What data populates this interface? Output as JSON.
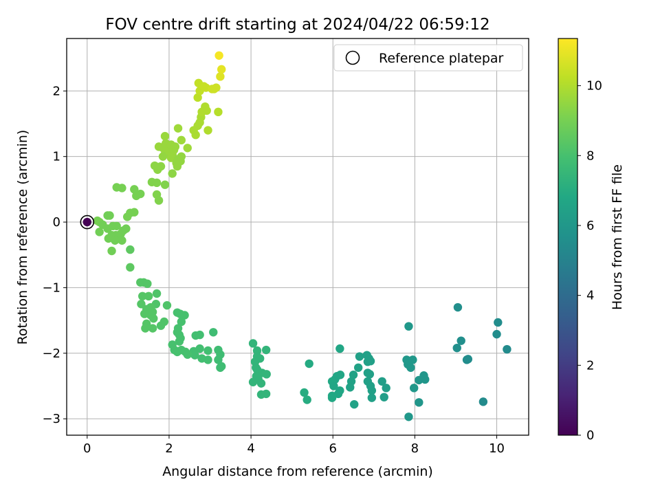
{
  "chart_data": {
    "type": "scatter",
    "title": "FOV centre drift starting at 2024/04/22 06:59:12",
    "xlabel": "Angular distance from reference (arcmin)",
    "ylabel": "Rotation from reference (arcmin)",
    "xlim": [
      -0.5,
      10.78
    ],
    "ylim": [
      -3.25,
      2.8
    ],
    "xticks": [
      0,
      2,
      4,
      6,
      8,
      10
    ],
    "yticks": [
      -3,
      -2,
      -1,
      0,
      1,
      2
    ],
    "xtick_labels": [
      "0",
      "2",
      "4",
      "6",
      "8",
      "10"
    ],
    "ytick_labels": [
      "−3",
      "−2",
      "−1",
      "0",
      "1",
      "2"
    ],
    "grid": true,
    "legend": {
      "placement": "top-right",
      "entries": [
        "Reference platepar"
      ]
    },
    "reference_point": {
      "x": 0,
      "y": 0,
      "label": "Reference platepar"
    },
    "colorbar": {
      "label": "Hours from first FF file",
      "range": [
        0,
        11.35
      ],
      "ticks": [
        0,
        2,
        4,
        6,
        8,
        10
      ],
      "tick_labels": [
        "0",
        "2",
        "4",
        "6",
        "8",
        "10"
      ],
      "colormap": "viridis"
    },
    "points": [
      {
        "x": 0,
        "y": 0,
        "c": 0
      },
      {
        "x": 9.05,
        "y": -1.3,
        "c": 5.6
      },
      {
        "x": 10.03,
        "y": -1.53,
        "c": 5.5
      },
      {
        "x": 10.0,
        "y": -1.71,
        "c": 5.5
      },
      {
        "x": 10.25,
        "y": -1.94,
        "c": 5.4
      },
      {
        "x": 9.13,
        "y": -1.81,
        "c": 5.6
      },
      {
        "x": 9.03,
        "y": -1.92,
        "c": 5.6
      },
      {
        "x": 9.27,
        "y": -2.1,
        "c": 5.5
      },
      {
        "x": 9.3,
        "y": -2.09,
        "c": 5.5
      },
      {
        "x": 9.67,
        "y": -2.74,
        "c": 5.4
      },
      {
        "x": 7.85,
        "y": -1.59,
        "c": 6.0
      },
      {
        "x": 7.8,
        "y": -2.1,
        "c": 6.0
      },
      {
        "x": 7.83,
        "y": -2.17,
        "c": 6.0
      },
      {
        "x": 7.95,
        "y": -2.1,
        "c": 6.0
      },
      {
        "x": 7.9,
        "y": -2.22,
        "c": 6.0
      },
      {
        "x": 8.1,
        "y": -2.41,
        "c": 5.9
      },
      {
        "x": 8.22,
        "y": -2.34,
        "c": 5.9
      },
      {
        "x": 8.25,
        "y": -2.4,
        "c": 5.9
      },
      {
        "x": 7.98,
        "y": -2.53,
        "c": 6.0
      },
      {
        "x": 8.1,
        "y": -2.75,
        "c": 5.9
      },
      {
        "x": 7.85,
        "y": -2.97,
        "c": 6.0
      },
      {
        "x": 6.83,
        "y": -2.03,
        "c": 6.4
      },
      {
        "x": 6.88,
        "y": -2.08,
        "c": 6.4
      },
      {
        "x": 6.65,
        "y": -2.05,
        "c": 6.4
      },
      {
        "x": 6.85,
        "y": -2.13,
        "c": 6.4
      },
      {
        "x": 6.92,
        "y": -2.12,
        "c": 6.4
      },
      {
        "x": 6.62,
        "y": -2.22,
        "c": 6.5
      },
      {
        "x": 6.85,
        "y": -2.3,
        "c": 6.4
      },
      {
        "x": 6.9,
        "y": -2.32,
        "c": 6.4
      },
      {
        "x": 6.5,
        "y": -2.33,
        "c": 6.5
      },
      {
        "x": 6.45,
        "y": -2.43,
        "c": 6.5
      },
      {
        "x": 6.85,
        "y": -2.43,
        "c": 6.4
      },
      {
        "x": 6.92,
        "y": -2.5,
        "c": 6.4
      },
      {
        "x": 6.42,
        "y": -2.52,
        "c": 6.5
      },
      {
        "x": 6.95,
        "y": -2.57,
        "c": 6.4
      },
      {
        "x": 7.2,
        "y": -2.43,
        "c": 6.3
      },
      {
        "x": 7.3,
        "y": -2.53,
        "c": 6.3
      },
      {
        "x": 7.25,
        "y": -2.67,
        "c": 6.3
      },
      {
        "x": 6.95,
        "y": -2.68,
        "c": 6.4
      },
      {
        "x": 6.52,
        "y": -2.78,
        "c": 6.5
      },
      {
        "x": 6.17,
        "y": -1.93,
        "c": 6.7
      },
      {
        "x": 6.18,
        "y": -2.33,
        "c": 6.7
      },
      {
        "x": 6.1,
        "y": -2.35,
        "c": 6.7
      },
      {
        "x": 6.05,
        "y": -2.4,
        "c": 6.7
      },
      {
        "x": 5.98,
        "y": -2.43,
        "c": 6.8
      },
      {
        "x": 6.02,
        "y": -2.5,
        "c": 6.7
      },
      {
        "x": 6.17,
        "y": -2.57,
        "c": 6.7
      },
      {
        "x": 6.13,
        "y": -2.62,
        "c": 6.7
      },
      {
        "x": 5.98,
        "y": -2.65,
        "c": 6.8
      },
      {
        "x": 5.98,
        "y": -2.68,
        "c": 6.8
      },
      {
        "x": 5.42,
        "y": -2.16,
        "c": 6.9
      },
      {
        "x": 5.3,
        "y": -2.6,
        "c": 7.0
      },
      {
        "x": 5.37,
        "y": -2.71,
        "c": 7.0
      },
      {
        "x": 4.05,
        "y": -1.85,
        "c": 7.4
      },
      {
        "x": 4.15,
        "y": -1.96,
        "c": 7.4
      },
      {
        "x": 4.37,
        "y": -1.95,
        "c": 7.4
      },
      {
        "x": 4.15,
        "y": -2.05,
        "c": 7.4
      },
      {
        "x": 4.22,
        "y": -2.08,
        "c": 7.4
      },
      {
        "x": 4.1,
        "y": -2.13,
        "c": 7.4
      },
      {
        "x": 4.12,
        "y": -2.22,
        "c": 7.4
      },
      {
        "x": 4.15,
        "y": -2.25,
        "c": 7.4
      },
      {
        "x": 4.27,
        "y": -2.3,
        "c": 7.4
      },
      {
        "x": 4.38,
        "y": -2.32,
        "c": 7.4
      },
      {
        "x": 4.13,
        "y": -2.35,
        "c": 7.4
      },
      {
        "x": 4.05,
        "y": -2.44,
        "c": 7.4
      },
      {
        "x": 4.18,
        "y": -2.4,
        "c": 7.4
      },
      {
        "x": 4.25,
        "y": -2.46,
        "c": 7.4
      },
      {
        "x": 4.25,
        "y": -2.63,
        "c": 7.4
      },
      {
        "x": 4.37,
        "y": -2.62,
        "c": 7.4
      },
      {
        "x": 3.08,
        "y": -1.68,
        "c": 7.8
      },
      {
        "x": 3.2,
        "y": -1.95,
        "c": 7.8
      },
      {
        "x": 3.25,
        "y": -2.02,
        "c": 7.8
      },
      {
        "x": 3.2,
        "y": -2.1,
        "c": 7.8
      },
      {
        "x": 3.28,
        "y": -2.2,
        "c": 7.8
      },
      {
        "x": 3.25,
        "y": -2.22,
        "c": 7.8
      },
      {
        "x": 2.95,
        "y": -1.96,
        "c": 7.9
      },
      {
        "x": 2.95,
        "y": -2.1,
        "c": 7.9
      },
      {
        "x": 2.8,
        "y": -2.08,
        "c": 7.9
      },
      {
        "x": 2.75,
        "y": -1.93,
        "c": 7.9
      },
      {
        "x": 2.6,
        "y": -1.97,
        "c": 7.9
      },
      {
        "x": 2.63,
        "y": -2.03,
        "c": 7.9
      },
      {
        "x": 2.65,
        "y": -1.73,
        "c": 7.9
      },
      {
        "x": 2.75,
        "y": -1.72,
        "c": 7.9
      },
      {
        "x": 2.38,
        "y": -1.42,
        "c": 8.0
      },
      {
        "x": 2.3,
        "y": -1.52,
        "c": 8.0
      },
      {
        "x": 2.2,
        "y": -1.38,
        "c": 8.0
      },
      {
        "x": 2.27,
        "y": -1.4,
        "c": 8.0
      },
      {
        "x": 2.22,
        "y": -1.62,
        "c": 8.0
      },
      {
        "x": 2.2,
        "y": -1.68,
        "c": 8.0
      },
      {
        "x": 2.25,
        "y": -1.72,
        "c": 8.0
      },
      {
        "x": 2.28,
        "y": -1.77,
        "c": 8.0
      },
      {
        "x": 2.25,
        "y": -1.82,
        "c": 8.0
      },
      {
        "x": 2.08,
        "y": -1.87,
        "c": 8.0
      },
      {
        "x": 2.13,
        "y": -1.95,
        "c": 8.0
      },
      {
        "x": 2.2,
        "y": -1.97,
        "c": 8.0
      },
      {
        "x": 2.3,
        "y": -1.95,
        "c": 8.0
      },
      {
        "x": 2.4,
        "y": -1.98,
        "c": 8.0
      },
      {
        "x": 2.45,
        "y": -2.02,
        "c": 8.0
      },
      {
        "x": 2.2,
        "y": -1.98,
        "c": 8.0
      },
      {
        "x": 1.95,
        "y": -1.27,
        "c": 8.2
      },
      {
        "x": 1.88,
        "y": -1.52,
        "c": 8.2
      },
      {
        "x": 1.8,
        "y": -1.58,
        "c": 8.2
      },
      {
        "x": 1.7,
        "y": -1.09,
        "c": 8.2
      },
      {
        "x": 1.68,
        "y": -1.25,
        "c": 8.2
      },
      {
        "x": 1.55,
        "y": -1.3,
        "c": 8.3
      },
      {
        "x": 1.45,
        "y": -1.33,
        "c": 8.3
      },
      {
        "x": 1.6,
        "y": -1.37,
        "c": 8.3
      },
      {
        "x": 1.55,
        "y": -1.42,
        "c": 8.3
      },
      {
        "x": 1.62,
        "y": -1.47,
        "c": 8.3
      },
      {
        "x": 1.4,
        "y": -1.4,
        "c": 8.3
      },
      {
        "x": 1.45,
        "y": -1.55,
        "c": 8.3
      },
      {
        "x": 1.42,
        "y": -1.62,
        "c": 8.3
      },
      {
        "x": 1.6,
        "y": -1.62,
        "c": 8.3
      },
      {
        "x": 1.32,
        "y": -1.25,
        "c": 8.3
      },
      {
        "x": 1.35,
        "y": -1.13,
        "c": 8.3
      },
      {
        "x": 1.3,
        "y": -0.92,
        "c": 8.3
      },
      {
        "x": 1.38,
        "y": -0.92,
        "c": 8.3
      },
      {
        "x": 1.47,
        "y": -0.94,
        "c": 8.3
      },
      {
        "x": 1.5,
        "y": -1.13,
        "c": 8.3
      },
      {
        "x": 1.05,
        "y": -0.42,
        "c": 8.5
      },
      {
        "x": 1.05,
        "y": -0.69,
        "c": 8.5
      },
      {
        "x": 0.5,
        "y": 0.1,
        "c": 8.9
      },
      {
        "x": 0.55,
        "y": 0.1,
        "c": 8.9
      },
      {
        "x": 0.3,
        "y": 0.0,
        "c": 9.0
      },
      {
        "x": 0.25,
        "y": 0.02,
        "c": 9.0
      },
      {
        "x": 0.38,
        "y": -0.04,
        "c": 8.9
      },
      {
        "x": 0.3,
        "y": -0.15,
        "c": 8.9
      },
      {
        "x": 0.5,
        "y": -0.1,
        "c": 8.9
      },
      {
        "x": 0.52,
        "y": -0.25,
        "c": 8.9
      },
      {
        "x": 0.6,
        "y": -0.2,
        "c": 8.9
      },
      {
        "x": 0.63,
        "y": -0.06,
        "c": 8.9
      },
      {
        "x": 0.7,
        "y": -0.2,
        "c": 8.9
      },
      {
        "x": 0.72,
        "y": -0.06,
        "c": 8.9
      },
      {
        "x": 0.75,
        "y": -0.25,
        "c": 8.9
      },
      {
        "x": 0.82,
        "y": -0.18,
        "c": 8.9
      },
      {
        "x": 0.85,
        "y": -0.28,
        "c": 8.9
      },
      {
        "x": 0.88,
        "y": -0.13,
        "c": 8.9
      },
      {
        "x": 0.95,
        "y": -0.1,
        "c": 8.9
      },
      {
        "x": 0.6,
        "y": -0.44,
        "c": 8.9
      },
      {
        "x": 0.68,
        "y": -0.28,
        "c": 8.9
      },
      {
        "x": 0.98,
        "y": 0.08,
        "c": 9.0
      },
      {
        "x": 1.05,
        "y": 0.14,
        "c": 9.0
      },
      {
        "x": 1.15,
        "y": 0.15,
        "c": 9.0
      },
      {
        "x": 1.2,
        "y": 0.4,
        "c": 9.0
      },
      {
        "x": 1.3,
        "y": 0.43,
        "c": 9.0
      },
      {
        "x": 1.15,
        "y": 0.5,
        "c": 9.0
      },
      {
        "x": 0.72,
        "y": 0.53,
        "c": 9.0
      },
      {
        "x": 0.85,
        "y": 0.52,
        "c": 9.0
      },
      {
        "x": 1.58,
        "y": 0.61,
        "c": 9.2
      },
      {
        "x": 1.7,
        "y": 0.6,
        "c": 9.2
      },
      {
        "x": 1.9,
        "y": 0.57,
        "c": 9.2
      },
      {
        "x": 1.7,
        "y": 0.42,
        "c": 9.2
      },
      {
        "x": 1.75,
        "y": 0.33,
        "c": 9.2
      },
      {
        "x": 1.65,
        "y": 0.86,
        "c": 9.4
      },
      {
        "x": 1.72,
        "y": 0.8,
        "c": 9.4
      },
      {
        "x": 1.8,
        "y": 0.85,
        "c": 9.4
      },
      {
        "x": 1.85,
        "y": 1.0,
        "c": 9.5
      },
      {
        "x": 1.9,
        "y": 1.04,
        "c": 9.5
      },
      {
        "x": 1.75,
        "y": 1.15,
        "c": 9.6
      },
      {
        "x": 1.85,
        "y": 1.13,
        "c": 9.6
      },
      {
        "x": 1.95,
        "y": 1.12,
        "c": 9.6
      },
      {
        "x": 1.92,
        "y": 1.2,
        "c": 9.6
      },
      {
        "x": 1.9,
        "y": 1.31,
        "c": 9.6
      },
      {
        "x": 2.0,
        "y": 1.08,
        "c": 9.6
      },
      {
        "x": 2.05,
        "y": 0.98,
        "c": 9.6
      },
      {
        "x": 2.08,
        "y": 1.03,
        "c": 9.6
      },
      {
        "x": 2.12,
        "y": 1.1,
        "c": 9.6
      },
      {
        "x": 2.15,
        "y": 1.15,
        "c": 9.6
      },
      {
        "x": 2.05,
        "y": 1.18,
        "c": 9.6
      },
      {
        "x": 2.18,
        "y": 0.9,
        "c": 9.5
      },
      {
        "x": 2.22,
        "y": 0.96,
        "c": 9.5
      },
      {
        "x": 2.28,
        "y": 0.93,
        "c": 9.5
      },
      {
        "x": 2.3,
        "y": 1.0,
        "c": 9.5
      },
      {
        "x": 2.2,
        "y": 0.85,
        "c": 9.5
      },
      {
        "x": 2.08,
        "y": 0.74,
        "c": 9.4
      },
      {
        "x": 2.3,
        "y": 1.25,
        "c": 9.7
      },
      {
        "x": 2.22,
        "y": 1.43,
        "c": 9.7
      },
      {
        "x": 2.45,
        "y": 1.13,
        "c": 9.7
      },
      {
        "x": 2.6,
        "y": 1.4,
        "c": 9.9
      },
      {
        "x": 2.65,
        "y": 1.33,
        "c": 9.9
      },
      {
        "x": 2.7,
        "y": 1.47,
        "c": 9.9
      },
      {
        "x": 2.75,
        "y": 1.52,
        "c": 9.9
      },
      {
        "x": 2.78,
        "y": 1.6,
        "c": 9.9
      },
      {
        "x": 2.85,
        "y": 1.7,
        "c": 10.0
      },
      {
        "x": 2.8,
        "y": 1.68,
        "c": 10.0
      },
      {
        "x": 2.88,
        "y": 1.76,
        "c": 10.0
      },
      {
        "x": 2.92,
        "y": 1.7,
        "c": 10.0
      },
      {
        "x": 2.95,
        "y": 1.4,
        "c": 10.0
      },
      {
        "x": 3.2,
        "y": 1.68,
        "c": 10.1
      },
      {
        "x": 2.7,
        "y": 1.9,
        "c": 10.2
      },
      {
        "x": 2.75,
        "y": 2.0,
        "c": 10.3
      },
      {
        "x": 2.72,
        "y": 2.12,
        "c": 10.3
      },
      {
        "x": 2.85,
        "y": 2.07,
        "c": 10.4
      },
      {
        "x": 2.9,
        "y": 2.05,
        "c": 10.4
      },
      {
        "x": 3.05,
        "y": 2.03,
        "c": 10.5
      },
      {
        "x": 3.1,
        "y": 2.03,
        "c": 10.5
      },
      {
        "x": 3.15,
        "y": 2.05,
        "c": 10.5
      },
      {
        "x": 3.25,
        "y": 2.22,
        "c": 10.8
      },
      {
        "x": 3.28,
        "y": 2.33,
        "c": 10.9
      },
      {
        "x": 3.22,
        "y": 2.54,
        "c": 11.2
      }
    ]
  }
}
